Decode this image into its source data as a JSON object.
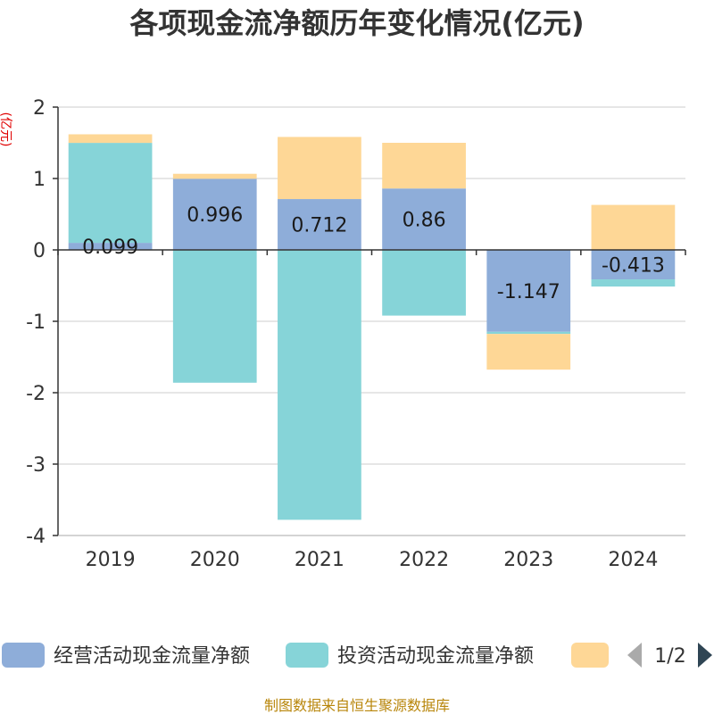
{
  "chart_data": {
    "type": "bar",
    "stacked": true,
    "title": "各项现金流净额历年变化情况(亿元)",
    "ylabel": "(亿元)",
    "xlabel": "",
    "categories": [
      "2019",
      "2020",
      "2021",
      "2022",
      "2023",
      "2024"
    ],
    "series": [
      {
        "name": "经营活动现金流量净额",
        "color": "#8eadd9",
        "values": [
          0.099,
          0.996,
          0.712,
          0.86,
          -1.147,
          -0.413
        ],
        "labels": [
          "0.099",
          "0.996",
          "0.712",
          "0.86",
          "-1.147",
          "-0.413"
        ]
      },
      {
        "name": "投资活动现金流量净额",
        "color": "#86d4d8",
        "values": [
          1.4,
          -1.86,
          -3.78,
          -0.92,
          -0.03,
          -0.1
        ]
      },
      {
        "name": "",
        "color": "#fed796",
        "values": [
          0.12,
          0.07,
          0.87,
          0.64,
          -0.5,
          0.63
        ]
      }
    ],
    "ylim": [
      -4,
      2
    ],
    "yticks": [
      2,
      1,
      0,
      -1,
      -2,
      -3,
      -4
    ],
    "grid": true,
    "legend_position": "bottom"
  },
  "legend": {
    "pager": "1/2"
  },
  "footer": "制图数据来自恒生聚源数据库"
}
